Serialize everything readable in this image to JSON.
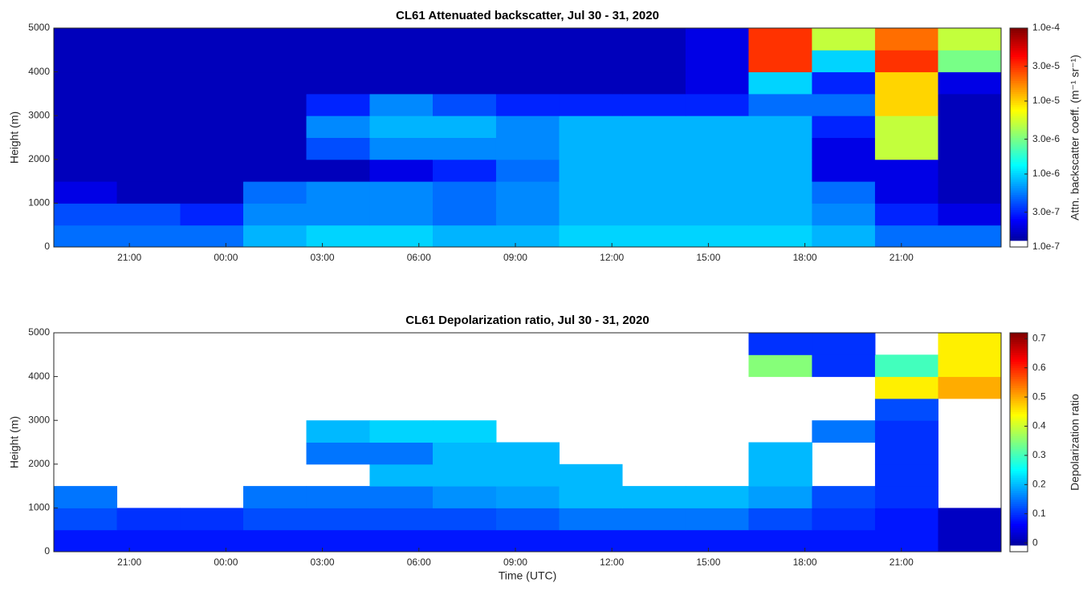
{
  "chart_data": [
    {
      "type": "heatmap",
      "title": "CL61 Attenuated backscatter, Jul 30 - 31, 2020",
      "ylabel": "Height (m)",
      "colorbar_label": "Attn. backscatter coeff. (m⁻¹ sr⁻¹)",
      "colormap": "jet",
      "color_log": true,
      "clim": [
        1e-07,
        0.0001
      ],
      "cticks": [
        {
          "value": 1e-07,
          "label": "1.0e-7"
        },
        {
          "value": 3e-07,
          "label": "3.0e-7"
        },
        {
          "value": 1e-06,
          "label": "1.0e-6"
        },
        {
          "value": 3e-06,
          "label": "3.0e-6"
        },
        {
          "value": 1e-05,
          "label": "1.0e-5"
        },
        {
          "value": 3e-05,
          "label": "3.0e-5"
        },
        {
          "value": 0.0001,
          "label": "1.0e-4"
        }
      ],
      "xlim": [
        18.65,
        48.1
      ],
      "xticks": [
        {
          "value": 21,
          "label": "21:00"
        },
        {
          "value": 24,
          "label": "00:00"
        },
        {
          "value": 27,
          "label": "03:00"
        },
        {
          "value": 30,
          "label": "06:00"
        },
        {
          "value": 33,
          "label": "09:00"
        },
        {
          "value": 36,
          "label": "12:00"
        },
        {
          "value": 39,
          "label": "15:00"
        },
        {
          "value": 42,
          "label": "18:00"
        },
        {
          "value": 45,
          "label": "21:00"
        }
      ],
      "ylim": [
        0,
        5000
      ],
      "yticks": [
        0,
        1000,
        2000,
        3000,
        4000,
        5000
      ],
      "x_edges": [
        18.65,
        20.61,
        22.58,
        24.54,
        26.5,
        28.47,
        30.43,
        32.4,
        34.36,
        36.32,
        38.29,
        40.25,
        42.22,
        44.18,
        46.14,
        48.1
      ],
      "y_edges": [
        0,
        500,
        1000,
        1500,
        2000,
        2500,
        3000,
        3500,
        4000,
        4500,
        5000
      ],
      "z": [
        [
          5e-07,
          5e-07,
          5e-07,
          8e-07,
          1e-06,
          1e-06,
          8e-07,
          8e-07,
          1e-06,
          1e-06,
          1e-06,
          1e-06,
          8e-07,
          5e-07,
          5e-07
        ],
        [
          4e-07,
          4e-07,
          3e-07,
          6e-07,
          6e-07,
          6e-07,
          5e-07,
          6e-07,
          8e-07,
          8e-07,
          8e-07,
          8e-07,
          6e-07,
          3e-07,
          2e-07
        ],
        [
          2e-07,
          1.5e-07,
          1.5e-07,
          5e-07,
          6e-07,
          6e-07,
          5e-07,
          6e-07,
          8e-07,
          8e-07,
          8e-07,
          8e-07,
          5e-07,
          2e-07,
          1.5e-07
        ],
        [
          1.5e-07,
          1.5e-07,
          1.5e-07,
          1.5e-07,
          1.5e-07,
          2e-07,
          3e-07,
          5e-07,
          8e-07,
          8e-07,
          8e-07,
          8e-07,
          2e-07,
          2e-07,
          1.5e-07
        ],
        [
          1.5e-07,
          1.5e-07,
          1.5e-07,
          1.5e-07,
          4e-07,
          6e-07,
          6e-07,
          6e-07,
          8e-07,
          8e-07,
          8e-07,
          8e-07,
          2e-07,
          5e-06,
          1.5e-07
        ],
        [
          1.5e-07,
          1.5e-07,
          1.5e-07,
          1.5e-07,
          6e-07,
          8e-07,
          8e-07,
          6e-07,
          8e-07,
          8e-07,
          8e-07,
          8e-07,
          3e-07,
          5e-06,
          1.5e-07
        ],
        [
          1.5e-07,
          1.5e-07,
          1.5e-07,
          1.5e-07,
          3e-07,
          6e-07,
          4e-07,
          3e-07,
          3e-07,
          3e-07,
          3e-07,
          5e-07,
          5e-07,
          1e-05,
          1.5e-07
        ],
        [
          1.5e-07,
          1.5e-07,
          1.5e-07,
          1.5e-07,
          1.5e-07,
          1.5e-07,
          1.5e-07,
          1.5e-07,
          1.5e-07,
          1.5e-07,
          2e-07,
          1e-06,
          3e-07,
          1e-05,
          2e-07
        ],
        [
          1.5e-07,
          1.5e-07,
          1.5e-07,
          1.5e-07,
          1.5e-07,
          1.5e-07,
          1.5e-07,
          1.5e-07,
          1.5e-07,
          1.5e-07,
          2e-07,
          3e-05,
          1e-06,
          3e-05,
          3e-06
        ],
        [
          1.5e-07,
          1.5e-07,
          1.5e-07,
          1.5e-07,
          1.5e-07,
          1.5e-07,
          1.5e-07,
          1.5e-07,
          1.5e-07,
          1.5e-07,
          2e-07,
          3e-05,
          5e-06,
          2e-05,
          5e-06
        ]
      ]
    },
    {
      "type": "heatmap",
      "title": "CL61 Depolarization ratio, Jul 30 - 31, 2020",
      "ylabel": "Height (m)",
      "xlabel": "Time (UTC)",
      "colorbar_label": "Depolarization ratio",
      "colormap": "jet",
      "color_log": false,
      "clim": [
        -0.03,
        0.72
      ],
      "cticks": [
        0,
        0.1,
        0.2,
        0.3,
        0.4,
        0.5,
        0.6,
        0.7
      ],
      "xlim": [
        18.65,
        48.1
      ],
      "xticks": [
        {
          "value": 21,
          "label": "21:00"
        },
        {
          "value": 24,
          "label": "00:00"
        },
        {
          "value": 27,
          "label": "03:00"
        },
        {
          "value": 30,
          "label": "06:00"
        },
        {
          "value": 33,
          "label": "09:00"
        },
        {
          "value": 36,
          "label": "12:00"
        },
        {
          "value": 39,
          "label": "15:00"
        },
        {
          "value": 42,
          "label": "18:00"
        },
        {
          "value": 45,
          "label": "21:00"
        }
      ],
      "ylim": [
        0,
        5000
      ],
      "yticks": [
        0,
        1000,
        2000,
        3000,
        4000,
        5000
      ],
      "x_edges": [
        18.65,
        20.61,
        22.58,
        24.54,
        26.5,
        28.47,
        30.43,
        32.4,
        34.36,
        36.32,
        38.29,
        40.25,
        42.22,
        44.18,
        46.14,
        48.1
      ],
      "y_edges": [
        0,
        500,
        1000,
        1500,
        2000,
        2500,
        3000,
        3500,
        4000,
        4500,
        5000
      ],
      "z": [
        [
          0.08,
          0.08,
          0.08,
          0.08,
          0.08,
          0.08,
          0.08,
          0.08,
          0.08,
          0.08,
          0.08,
          0.08,
          0.08,
          0.08,
          0.02
        ],
        [
          0.12,
          0.1,
          0.1,
          0.12,
          0.12,
          0.12,
          0.12,
          0.13,
          0.15,
          0.15,
          0.15,
          0.12,
          0.1,
          0.08,
          0.02
        ],
        [
          0.15,
          null,
          null,
          0.15,
          0.15,
          0.15,
          0.17,
          0.18,
          0.2,
          0.2,
          0.2,
          0.18,
          0.12,
          0.1,
          null
        ],
        [
          null,
          null,
          null,
          null,
          null,
          0.2,
          0.2,
          0.2,
          0.2,
          null,
          null,
          0.2,
          null,
          0.1,
          null
        ],
        [
          null,
          null,
          null,
          null,
          0.15,
          0.15,
          0.2,
          0.2,
          null,
          null,
          null,
          0.2,
          null,
          0.1,
          null
        ],
        [
          null,
          null,
          null,
          null,
          0.2,
          0.22,
          0.22,
          null,
          null,
          null,
          null,
          null,
          0.15,
          0.1,
          null
        ],
        [
          null,
          null,
          null,
          null,
          null,
          null,
          null,
          null,
          null,
          null,
          null,
          null,
          null,
          0.12,
          null
        ],
        [
          null,
          null,
          null,
          null,
          null,
          null,
          null,
          null,
          null,
          null,
          null,
          null,
          null,
          0.45,
          0.5
        ],
        [
          null,
          null,
          null,
          null,
          null,
          null,
          null,
          null,
          null,
          null,
          null,
          0.35,
          0.1,
          0.3,
          0.45
        ],
        [
          null,
          null,
          null,
          null,
          null,
          null,
          null,
          null,
          null,
          null,
          null,
          0.1,
          0.1,
          null,
          0.45
        ]
      ]
    }
  ]
}
